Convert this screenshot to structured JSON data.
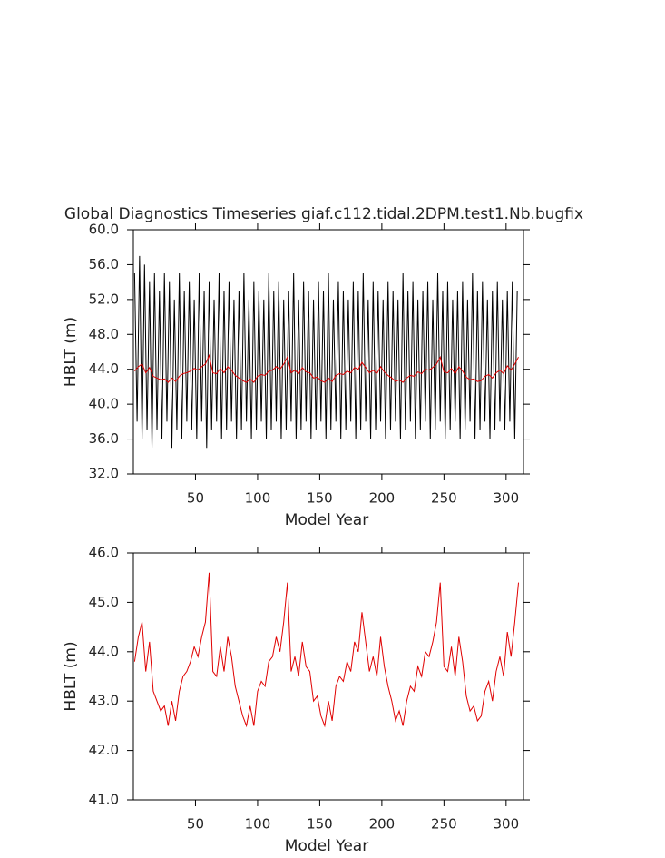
{
  "chart_data": [
    {
      "type": "line",
      "title": "Global Diagnostics Timeseries giaf.c112.tidal.2DPM.test1.Nb.bugfix",
      "xlabel": "Model Year",
      "ylabel": "HBLT (m)",
      "xlim": [
        0,
        314
      ],
      "xticks": [
        50,
        100,
        150,
        200,
        250,
        300
      ],
      "ylim": [
        32,
        60
      ],
      "yticks": [
        {
          "value": 32,
          "label": "32.0"
        },
        {
          "value": 36,
          "label": "36.0"
        },
        {
          "value": 40,
          "label": "40.0"
        },
        {
          "value": 44,
          "label": "44.0"
        },
        {
          "value": 48,
          "label": "48.0"
        },
        {
          "value": 52,
          "label": "52.0"
        },
        {
          "value": 56,
          "label": "56.0"
        },
        {
          "value": 60,
          "label": "60.0"
        }
      ],
      "series": [
        {
          "color": "#000000",
          "x": [
            1,
            3,
            5,
            7,
            9,
            11,
            13,
            15,
            17,
            19,
            21,
            23,
            25,
            27,
            29,
            31,
            33,
            35,
            37,
            39,
            41,
            43,
            45,
            47,
            49,
            51,
            53,
            55,
            57,
            59,
            61,
            63,
            65,
            67,
            69,
            71,
            73,
            75,
            77,
            79,
            81,
            83,
            85,
            87,
            89,
            91,
            93,
            95,
            97,
            99,
            101,
            103,
            105,
            107,
            109,
            111,
            113,
            115,
            117,
            119,
            121,
            123,
            125,
            127,
            129,
            131,
            133,
            135,
            137,
            139,
            141,
            143,
            145,
            147,
            149,
            151,
            153,
            155,
            157,
            159,
            161,
            163,
            165,
            167,
            169,
            171,
            173,
            175,
            177,
            179,
            181,
            183,
            185,
            187,
            189,
            191,
            193,
            195,
            197,
            199,
            201,
            203,
            205,
            207,
            209,
            211,
            213,
            215,
            217,
            219,
            221,
            223,
            225,
            227,
            229,
            231,
            233,
            235,
            237,
            239,
            241,
            243,
            245,
            247,
            249,
            251,
            253,
            255,
            257,
            259,
            261,
            263,
            265,
            267,
            269,
            271,
            273,
            275,
            277,
            279,
            281,
            283,
            285,
            287,
            289,
            291,
            293,
            295,
            297,
            299,
            301,
            303,
            305,
            307,
            309
          ],
          "values": [
            55,
            38,
            57,
            36,
            56,
            37,
            54,
            35,
            55,
            37,
            53,
            36,
            55,
            38,
            54,
            35,
            52,
            37,
            55,
            36,
            53,
            38,
            54,
            37,
            52,
            36,
            55,
            38,
            53,
            35,
            54,
            37,
            52,
            38,
            55,
            36,
            53,
            37,
            54,
            38,
            52,
            36,
            53,
            37,
            55,
            38,
            52,
            36,
            54,
            37,
            53,
            38,
            52,
            36,
            55,
            37,
            53,
            38,
            54,
            36,
            52,
            37,
            53,
            38,
            55,
            36,
            52,
            37,
            54,
            38,
            53,
            36,
            52,
            37,
            54,
            38,
            53,
            36,
            55,
            37,
            52,
            38,
            54,
            36,
            53,
            37,
            52,
            38,
            54,
            36,
            53,
            37,
            55,
            38,
            52,
            36,
            54,
            37,
            53,
            38,
            52,
            36,
            54,
            37,
            53,
            38,
            52,
            36,
            55,
            37,
            53,
            38,
            54,
            36,
            52,
            37,
            53,
            38,
            54,
            36,
            52,
            37,
            55,
            38,
            53,
            36,
            54,
            37,
            52,
            38,
            53,
            36,
            54,
            37,
            52,
            38,
            55,
            36,
            53,
            37,
            54,
            38,
            52,
            36,
            53,
            37,
            54,
            38,
            52,
            37,
            53,
            38,
            54,
            36,
            53
          ]
        },
        {
          "color": "#e00000",
          "x": [
            1,
            4,
            7,
            10,
            13,
            16,
            19,
            22,
            25,
            28,
            31,
            34,
            37,
            40,
            43,
            46,
            49,
            52,
            55,
            58,
            61,
            64,
            67,
            70,
            73,
            76,
            79,
            82,
            85,
            88,
            91,
            94,
            97,
            100,
            103,
            106,
            109,
            112,
            115,
            118,
            121,
            124,
            127,
            130,
            133,
            136,
            139,
            142,
            145,
            148,
            151,
            154,
            157,
            160,
            163,
            166,
            169,
            172,
            175,
            178,
            181,
            184,
            187,
            190,
            193,
            196,
            199,
            202,
            205,
            208,
            211,
            214,
            217,
            220,
            223,
            226,
            229,
            232,
            235,
            238,
            241,
            244,
            247,
            250,
            253,
            256,
            259,
            262,
            265,
            268,
            271,
            274,
            277,
            280,
            283,
            286,
            289,
            292,
            295,
            298,
            301,
            304,
            307,
            310
          ],
          "values": [
            43.8,
            44.3,
            44.6,
            43.6,
            44.2,
            43.2,
            43.0,
            42.8,
            42.9,
            42.5,
            43.0,
            42.6,
            43.2,
            43.5,
            43.6,
            43.8,
            44.1,
            43.9,
            44.3,
            44.6,
            45.6,
            43.6,
            43.5,
            44.1,
            43.6,
            44.3,
            43.9,
            43.3,
            43.0,
            42.7,
            42.5,
            42.9,
            42.5,
            43.2,
            43.4,
            43.3,
            43.8,
            43.9,
            44.3,
            44.0,
            44.6,
            45.4,
            43.6,
            43.9,
            43.5,
            44.2,
            43.7,
            43.6,
            43.0,
            43.1,
            42.7,
            42.5,
            43.0,
            42.6,
            43.3,
            43.5,
            43.4,
            43.8,
            43.6,
            44.2,
            44.0,
            44.8,
            44.2,
            43.6,
            43.9,
            43.5,
            44.3,
            43.7,
            43.3,
            43.0,
            42.6,
            42.8,
            42.5,
            43.0,
            43.3,
            43.2,
            43.7,
            43.5,
            44.0,
            43.9,
            44.2,
            44.6,
            45.4,
            43.7,
            43.6,
            44.1,
            43.5,
            44.3,
            43.8,
            43.1,
            42.8,
            42.9,
            42.6,
            42.7,
            43.2,
            43.4,
            43.0,
            43.6,
            43.9,
            43.5,
            44.4,
            43.9,
            44.6,
            45.4
          ]
        }
      ]
    },
    {
      "type": "line",
      "xlabel": "Model Year",
      "ylabel": "HBLT (m)",
      "xlim": [
        0,
        314
      ],
      "xticks": [
        50,
        100,
        150,
        200,
        250,
        300
      ],
      "ylim": [
        41,
        46
      ],
      "yticks": [
        {
          "value": 41,
          "label": "41.0"
        },
        {
          "value": 42,
          "label": "42.0"
        },
        {
          "value": 43,
          "label": "43.0"
        },
        {
          "value": 44,
          "label": "44.0"
        },
        {
          "value": 45,
          "label": "45.0"
        },
        {
          "value": 46,
          "label": "46.0"
        }
      ],
      "series": [
        {
          "color": "#e00000",
          "x": [
            1,
            4,
            7,
            10,
            13,
            16,
            19,
            22,
            25,
            28,
            31,
            34,
            37,
            40,
            43,
            46,
            49,
            52,
            55,
            58,
            61,
            64,
            67,
            70,
            73,
            76,
            79,
            82,
            85,
            88,
            91,
            94,
            97,
            100,
            103,
            106,
            109,
            112,
            115,
            118,
            121,
            124,
            127,
            130,
            133,
            136,
            139,
            142,
            145,
            148,
            151,
            154,
            157,
            160,
            163,
            166,
            169,
            172,
            175,
            178,
            181,
            184,
            187,
            190,
            193,
            196,
            199,
            202,
            205,
            208,
            211,
            214,
            217,
            220,
            223,
            226,
            229,
            232,
            235,
            238,
            241,
            244,
            247,
            250,
            253,
            256,
            259,
            262,
            265,
            268,
            271,
            274,
            277,
            280,
            283,
            286,
            289,
            292,
            295,
            298,
            301,
            304,
            307,
            310
          ],
          "values": [
            43.8,
            44.3,
            44.6,
            43.6,
            44.2,
            43.2,
            43.0,
            42.8,
            42.9,
            42.5,
            43.0,
            42.6,
            43.2,
            43.5,
            43.6,
            43.8,
            44.1,
            43.9,
            44.3,
            44.6,
            45.6,
            43.6,
            43.5,
            44.1,
            43.6,
            44.3,
            43.9,
            43.3,
            43.0,
            42.7,
            42.5,
            42.9,
            42.5,
            43.2,
            43.4,
            43.3,
            43.8,
            43.9,
            44.3,
            44.0,
            44.6,
            45.4,
            43.6,
            43.9,
            43.5,
            44.2,
            43.7,
            43.6,
            43.0,
            43.1,
            42.7,
            42.5,
            43.0,
            42.6,
            43.3,
            43.5,
            43.4,
            43.8,
            43.6,
            44.2,
            44.0,
            44.8,
            44.2,
            43.6,
            43.9,
            43.5,
            44.3,
            43.7,
            43.3,
            43.0,
            42.6,
            42.8,
            42.5,
            43.0,
            43.3,
            43.2,
            43.7,
            43.5,
            44.0,
            43.9,
            44.2,
            44.6,
            45.4,
            43.7,
            43.6,
            44.1,
            43.5,
            44.3,
            43.8,
            43.1,
            42.8,
            42.9,
            42.6,
            42.7,
            43.2,
            43.4,
            43.0,
            43.6,
            43.9,
            43.5,
            44.4,
            43.9,
            44.6,
            45.4
          ]
        }
      ]
    }
  ]
}
